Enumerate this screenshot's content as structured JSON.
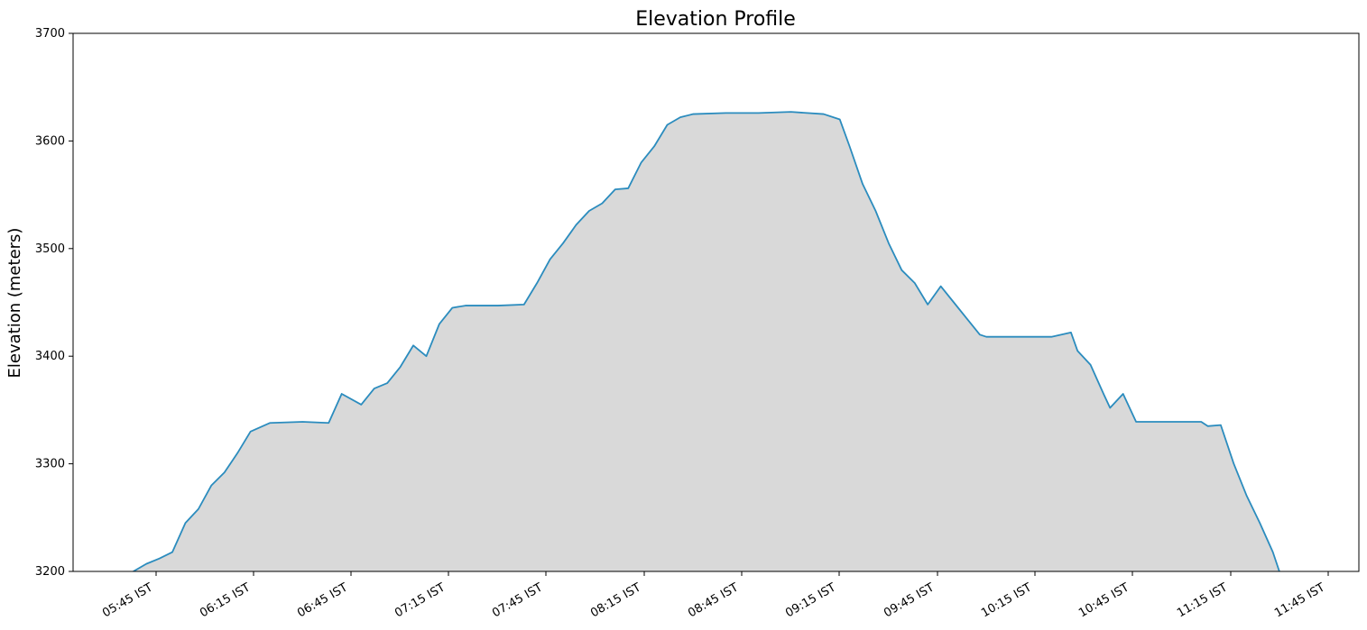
{
  "chart_data": {
    "type": "area",
    "title": "Elevation Profile",
    "xlabel": "",
    "ylabel": "Elevation (meters)",
    "ylim": [
      3200,
      3700
    ],
    "grid": false,
    "legend": "none",
    "colors": {
      "line": "#2b8cbe",
      "fill": "#d9d9d9",
      "axis": "#000000"
    },
    "x_ticks": [
      "05:45 IST",
      "06:15 IST",
      "06:45 IST",
      "07:15 IST",
      "07:45 IST",
      "08:15 IST",
      "08:45 IST",
      "09:15 IST",
      "09:45 IST",
      "10:15 IST",
      "10:45 IST",
      "11:15 IST",
      "11:45 IST"
    ],
    "y_ticks": [
      3200,
      3300,
      3400,
      3500,
      3600,
      3700
    ],
    "series": [
      {
        "x": [
          "05:38 IST",
          "05:42 IST",
          "05:46 IST",
          "05:50 IST",
          "05:54 IST",
          "05:58 IST",
          "06:02 IST",
          "06:06 IST",
          "06:10 IST",
          "06:14 IST",
          "06:20 IST",
          "06:30 IST",
          "06:38 IST",
          "06:42 IST",
          "06:48 IST",
          "06:52 IST",
          "06:56 IST",
          "07:00 IST",
          "07:04 IST",
          "07:08 IST",
          "07:12 IST",
          "07:16 IST",
          "07:20 IST",
          "07:30 IST",
          "07:38 IST",
          "07:42 IST",
          "07:46 IST",
          "07:50 IST",
          "07:54 IST",
          "07:58 IST",
          "08:02 IST",
          "08:06 IST",
          "08:10 IST",
          "08:14 IST",
          "08:18 IST",
          "08:22 IST",
          "08:26 IST",
          "08:30 IST",
          "08:40 IST",
          "08:50 IST",
          "09:00 IST",
          "09:10 IST",
          "09:15 IST",
          "09:18 IST",
          "09:22 IST",
          "09:26 IST",
          "09:30 IST",
          "09:34 IST",
          "09:38 IST",
          "09:42 IST",
          "09:46 IST",
          "09:50 IST",
          "09:54 IST",
          "09:58 IST",
          "10:00 IST",
          "10:10 IST",
          "10:20 IST",
          "10:26 IST",
          "10:28 IST",
          "10:32 IST",
          "10:36 IST",
          "10:38 IST",
          "10:42 IST",
          "10:46 IST",
          "10:56 IST",
          "11:06 IST",
          "11:08 IST",
          "11:12 IST",
          "11:16 IST",
          "11:20 IST",
          "11:24 IST",
          "11:28 IST",
          "11:30 IST"
        ],
        "values": [
          3200,
          3207,
          3212,
          3218,
          3245,
          3258,
          3280,
          3292,
          3310,
          3330,
          3338,
          3339,
          3338,
          3365,
          3355,
          3370,
          3375,
          3390,
          3410,
          3400,
          3430,
          3445,
          3447,
          3447,
          3448,
          3468,
          3490,
          3505,
          3522,
          3535,
          3542,
          3555,
          3556,
          3580,
          3595,
          3615,
          3622,
          3625,
          3626,
          3626,
          3627,
          3625,
          3620,
          3595,
          3560,
          3535,
          3505,
          3480,
          3468,
          3448,
          3465,
          3450,
          3435,
          3420,
          3418,
          3418,
          3418,
          3422,
          3405,
          3392,
          3365,
          3352,
          3365,
          3339,
          3339,
          3339,
          3335,
          3336,
          3300,
          3270,
          3245,
          3218,
          3200
        ]
      }
    ]
  }
}
